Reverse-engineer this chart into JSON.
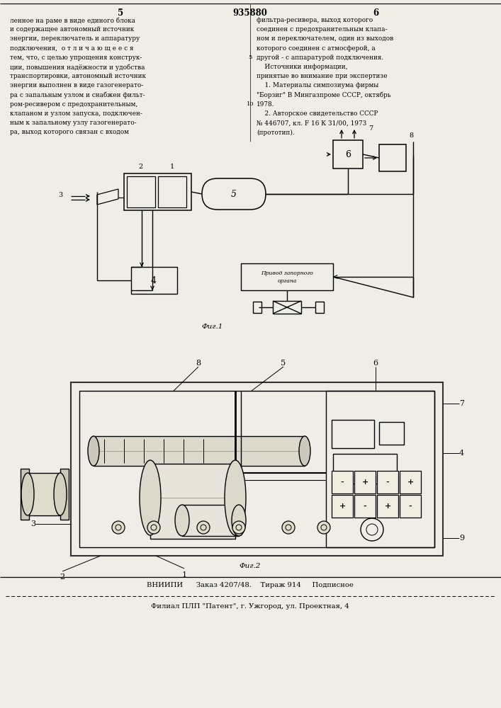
{
  "bg_color": "#f0ede6",
  "patent_number": "935880",
  "page_left": "5",
  "page_right": "6",
  "text_left": [
    "ленное на раме в виде единого блока",
    "и содержащее автономный источник",
    "энергии, переключатель и аппаратуру",
    "подключения,  о т л и ч а ю щ е е с я",
    "тем, что, с целью упрощения конструк-",
    "ции, повышения надёжности и удобства",
    "транспортировки, автономный источник",
    "энергии выполнен в виде газогенерато-",
    "ра с запальным узлом и снабжен фильт-",
    "ром-ресивером с предохранительным,",
    "клапаном и узлом запуска, подключен-",
    "ным к запальному узлу газогенерато-",
    "ра, выход которого связан с входом"
  ],
  "text_right": [
    "фильтра-ресивера, выход которого",
    "соединен с предохранительным клапа-",
    "ном и переключателем, один из выходов",
    "которого соединен с атмосферой, а",
    "другой - с аппаратурой подключения.",
    "    Источники информации,",
    "принятые во внимание при экспертизе",
    "    1. Материалы симпозиума фирмы",
    "\"Борзиг\" В Мингазпроме СССР, октябрь",
    "1978.",
    "    2. Авторское свидетельство СССР",
    "№ 446707, кл. F 16 К 31/00, 1973",
    "(прототип)."
  ],
  "line_num_5": "5",
  "line_num_10": "10",
  "fig1_label": "Фиг.1",
  "fig2_label": "Фиг.2",
  "actuator_label_1": "Привод запорного",
  "actuator_label_2": "органа",
  "bottom_line1": "ВНИИПИ      Заказ 4207/48.    Тираж 914     Подписное",
  "bottom_line2": "Филиал ПЛП \"Патент\", г. Ужгород, ул. Проектная, 4"
}
